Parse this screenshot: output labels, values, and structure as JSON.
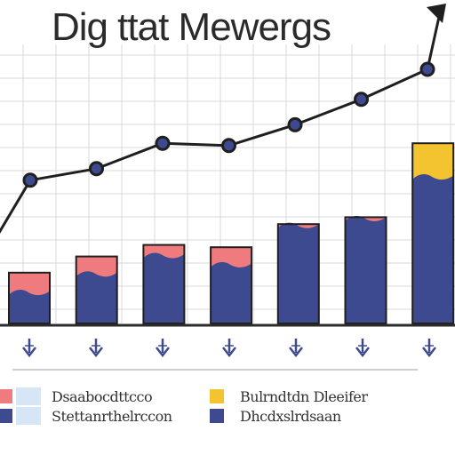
{
  "chart_data": {
    "type": "bar",
    "title": "Dig ttat Mewergs",
    "categories": [
      "",
      "",
      "",
      "",
      "",
      "",
      ""
    ],
    "series": [
      {
        "values": [
          1.4,
          2.2,
          3.0,
          2.6,
          4.3,
          4.6,
          6.4
        ]
      },
      {
        "values": [
          0.8,
          0.7,
          0.4,
          0.7,
          0.0,
          0.0,
          1.4
        ]
      },
      {
        "values": [
          6.2,
          6.7,
          7.8,
          7.7,
          8.6,
          9.7,
          11.0
        ]
      }
    ],
    "colors": {
      "bar_base": "#3d4a8f",
      "bar_top_pink": "#ef7b7e",
      "bar_top_yellow": "#f4c430",
      "line": "#1f1f1f",
      "marker": "#3d4a8f",
      "arrow": "#3d4a8f",
      "grid": "#d9d9d9"
    },
    "ylim": [
      0,
      12
    ],
    "grid": true,
    "legend": {
      "position": "bottom",
      "items": [
        {
          "label": "Dsaabocdttcco",
          "swatch": "#ef7b7e"
        },
        {
          "label": "Stettanrthelrccon",
          "swatch": "#3d4a8f"
        },
        {
          "label": "Bulrndtdn Dleeifer",
          "swatch": "#f4c430"
        },
        {
          "label": "Dhcdxslrdsaan",
          "swatch": "#3d4a8f"
        }
      ]
    }
  }
}
